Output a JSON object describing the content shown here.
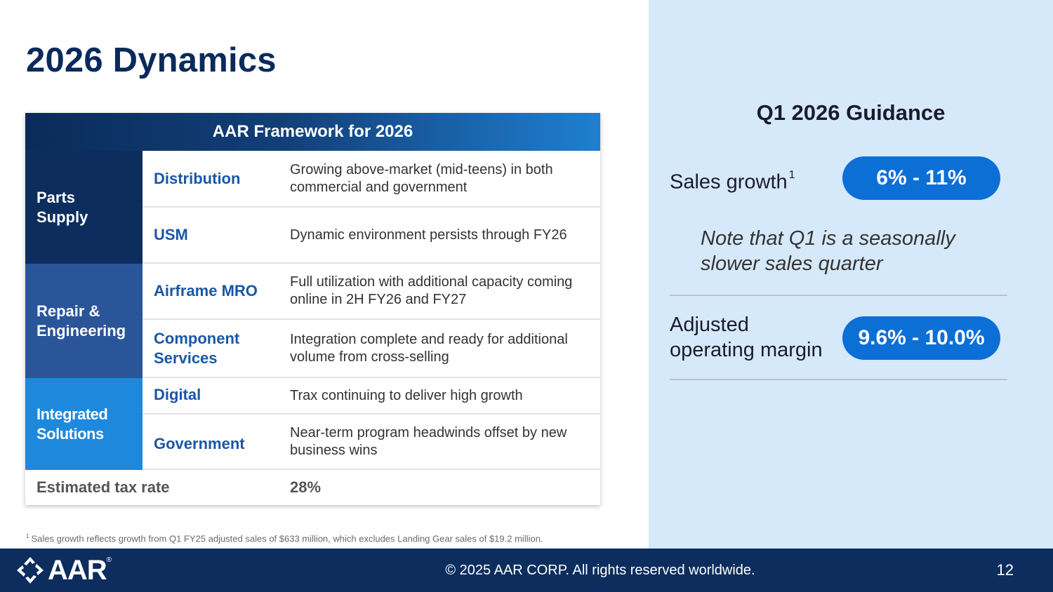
{
  "slide": {
    "title": "2026 Dynamics",
    "page_number": "12"
  },
  "framework": {
    "header": "AAR Framework for 2026",
    "groups": [
      {
        "label": "Parts Supply"
      },
      {
        "label": "Repair & Engineering"
      },
      {
        "label": "Integrated Solutions"
      }
    ],
    "rows": [
      {
        "label": "Distribution",
        "description": "Growing above-market (mid-teens) in both commercial and government"
      },
      {
        "label": "USM",
        "description": "Dynamic environment persists through FY26"
      },
      {
        "label": "Airframe MRO",
        "description": "Full utilization with additional capacity coming online in 2H FY26 and FY27"
      },
      {
        "label": "Component Services",
        "description": "Integration complete and ready for additional volume from cross-selling"
      },
      {
        "label": "Digital",
        "description": "Trax continuing to deliver high growth"
      },
      {
        "label": "Government",
        "description": "Near-term program headwinds offset by new business wins"
      }
    ],
    "tax": {
      "label": "Estimated tax rate",
      "value": "28%"
    }
  },
  "guidance": {
    "title": "Q1 2026 Guidance",
    "sales_label": "Sales growth",
    "sales_footnote_marker": "1",
    "sales_value": "6% - 11%",
    "note": "Note that Q1 is a seasonally slower sales quarter",
    "margin_label": "Adjusted operating margin",
    "margin_value": "9.6% - 10.0%"
  },
  "footnote": {
    "marker": "1",
    "text": "Sales growth reflects growth from Q1 FY25 adjusted sales of $633 million, which excludes Landing Gear sales of $19.2 million."
  },
  "footer": {
    "logo_text": "AAR",
    "logo_mark": "®",
    "copyright": "© 2025 AAR CORP. All rights reserved worldwide."
  },
  "colors": {
    "navy": "#0c2d5e",
    "mid_blue": "#2a5599",
    "bright_blue": "#1e88dc",
    "pill_blue": "#0c6fd6",
    "panel_bg": "#d6e9fb",
    "sub_label": "#1a57a6"
  }
}
